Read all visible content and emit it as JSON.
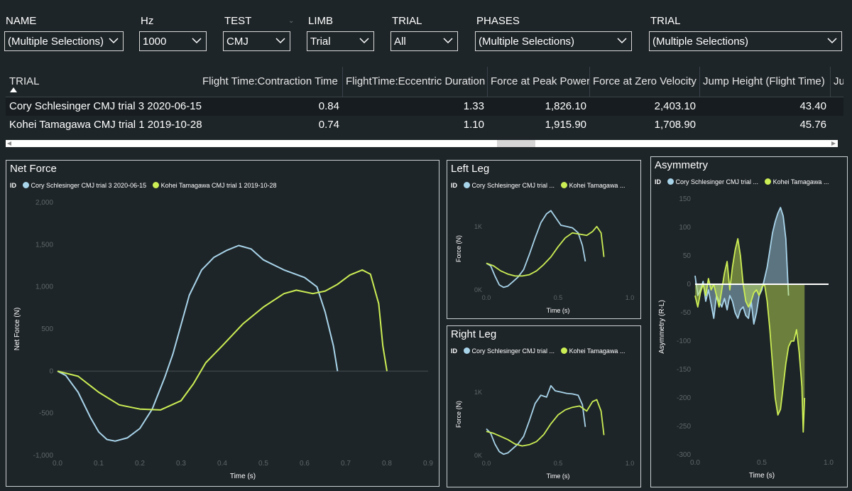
{
  "colors": {
    "blue": "#a8d4ea",
    "green": "#ccee55",
    "zero_line": "#ffffff",
    "tick": "#5e6669"
  },
  "slicers": [
    {
      "title": "NAME",
      "value": "(Multiple Selections)"
    },
    {
      "title": "Hz",
      "value": "1000"
    },
    {
      "title": "TEST",
      "value": "CMJ"
    },
    {
      "title": "LIMB",
      "value": "Trial"
    },
    {
      "title": "TRIAL",
      "value": "All"
    },
    {
      "title": "PHASES",
      "value": "(Multiple Selections)"
    },
    {
      "title": "TRIAL",
      "value": "(Multiple Selections)"
    }
  ],
  "table": {
    "columns": [
      "TRIAL",
      "Flight Time:Contraction Time",
      "FlightTime:Eccentric Duration",
      "Force at Peak Power",
      "Force at Zero Velocity",
      "Jump Height (Flight Time)",
      "Ju"
    ],
    "rows": [
      [
        "Cory Schlesinger CMJ trial 3 2020-06-15",
        "0.84",
        "1.33",
        "1,826.10",
        "2,403.10",
        "43.40"
      ],
      [
        "Kohei Tamagawa CMJ trial 1 2019-10-28",
        "0.74",
        "1.10",
        "1,915.90",
        "1,708.90",
        "45.76"
      ]
    ]
  },
  "legend": {
    "id_label": "ID",
    "full": [
      "Cory Schlesinger CMJ trial 3 2020-06-15",
      "Kohei Tamagawa CMJ trial 1 2019-10-28"
    ],
    "short": [
      "Cory Schlesinger CMJ trial ...",
      "Kohei Tamagawa ..."
    ]
  },
  "chart_data": [
    {
      "type": "line",
      "title": "Net Force",
      "xlabel": "Time (s)",
      "ylabel": "Net Force (N)",
      "xlim": [
        0,
        0.9
      ],
      "ylim": [
        -1000,
        2000
      ],
      "xticks": [
        0,
        0.1,
        0.2,
        0.3,
        0.4,
        0.5,
        0.6,
        0.7,
        0.8,
        0.9
      ],
      "xtick_labels": [
        "0.0",
        "0.1",
        "0.2",
        "0.3",
        "0.4",
        "0.5",
        "0.6",
        "0.7",
        "0.8",
        "0.9"
      ],
      "yticks": [
        -1000,
        -500,
        0,
        500,
        1000,
        1500,
        2000
      ],
      "ytick_labels": [
        "-1,000",
        "-500",
        "0",
        "500",
        "1,000",
        "1,500",
        "2,000"
      ],
      "series": [
        {
          "name": "Cory Schlesinger CMJ trial 3 2020-06-15",
          "color": "#a8d4ea",
          "x": [
            0,
            0.02,
            0.05,
            0.08,
            0.1,
            0.12,
            0.14,
            0.17,
            0.2,
            0.23,
            0.26,
            0.28,
            0.3,
            0.32,
            0.35,
            0.38,
            0.41,
            0.44,
            0.47,
            0.5,
            0.55,
            0.6,
            0.63,
            0.65,
            0.67,
            0.68
          ],
          "y": [
            0,
            -50,
            -250,
            -550,
            -720,
            -810,
            -830,
            -790,
            -680,
            -450,
            -80,
            200,
            550,
            900,
            1200,
            1350,
            1430,
            1490,
            1450,
            1320,
            1200,
            1110,
            1000,
            700,
            300,
            0
          ]
        },
        {
          "name": "Kohei Tamagawa CMJ trial 1 2019-10-28",
          "color": "#ccee55",
          "x": [
            0,
            0.05,
            0.1,
            0.15,
            0.2,
            0.25,
            0.3,
            0.33,
            0.36,
            0.4,
            0.45,
            0.5,
            0.55,
            0.58,
            0.62,
            0.65,
            0.68,
            0.71,
            0.74,
            0.76,
            0.78,
            0.79,
            0.8
          ],
          "y": [
            0,
            -60,
            -250,
            -400,
            -450,
            -460,
            -350,
            -150,
            100,
            300,
            560,
            760,
            920,
            960,
            920,
            950,
            1030,
            1140,
            1200,
            1150,
            800,
            300,
            0
          ]
        }
      ]
    },
    {
      "type": "line",
      "title": "Left Leg",
      "xlabel": "Time (s)",
      "ylabel": "Force (N)",
      "xlim": [
        0,
        1
      ],
      "ylim": [
        0,
        1300
      ],
      "xticks": [
        0,
        0.5,
        1.0
      ],
      "xtick_labels": [
        "0.0",
        "0.5",
        "1.0"
      ],
      "yticks": [
        0,
        1000
      ],
      "ytick_labels": [
        "0K",
        "1K"
      ],
      "series": [
        {
          "name": "Cory Schlesinger CMJ trial 3 2020-06-15",
          "color": "#a8d4ea",
          "x": [
            0,
            0.03,
            0.06,
            0.09,
            0.12,
            0.15,
            0.18,
            0.22,
            0.26,
            0.3,
            0.34,
            0.38,
            0.42,
            0.45,
            0.48,
            0.52,
            0.56,
            0.6,
            0.64,
            0.67,
            0.69
          ],
          "y": [
            420,
            380,
            220,
            80,
            40,
            60,
            120,
            200,
            320,
            560,
            820,
            1060,
            1200,
            1250,
            1150,
            1020,
            1000,
            980,
            900,
            700,
            450
          ]
        },
        {
          "name": "Kohei Tamagawa CMJ trial 1 2019-10-28",
          "color": "#ccee55",
          "x": [
            0,
            0.05,
            0.1,
            0.15,
            0.2,
            0.25,
            0.3,
            0.35,
            0.4,
            0.45,
            0.5,
            0.55,
            0.6,
            0.65,
            0.7,
            0.74,
            0.77,
            0.8,
            0.82
          ],
          "y": [
            420,
            380,
            300,
            250,
            220,
            220,
            240,
            300,
            400,
            520,
            680,
            820,
            900,
            880,
            860,
            920,
            1000,
            900,
            520
          ]
        }
      ]
    },
    {
      "type": "line",
      "title": "Right Leg",
      "xlabel": "Time (s)",
      "ylabel": "Force (N)",
      "xlim": [
        0,
        1
      ],
      "ylim": [
        0,
        1300
      ],
      "xticks": [
        0,
        0.5,
        1.0
      ],
      "xtick_labels": [
        "0.0",
        "0.5",
        "1.0"
      ],
      "yticks": [
        0,
        1000
      ],
      "ytick_labels": [
        "0K",
        "1K"
      ],
      "series": [
        {
          "name": "Cory Schlesinger CMJ trial 3 2020-06-15",
          "color": "#a8d4ea",
          "x": [
            0,
            0.03,
            0.06,
            0.09,
            0.12,
            0.15,
            0.18,
            0.22,
            0.26,
            0.3,
            0.34,
            0.38,
            0.42,
            0.45,
            0.48,
            0.52,
            0.56,
            0.6,
            0.64,
            0.67,
            0.69
          ],
          "y": [
            420,
            350,
            180,
            60,
            20,
            40,
            100,
            180,
            300,
            550,
            820,
            950,
            920,
            1100,
            1020,
            1000,
            980,
            970,
            950,
            800,
            450
          ]
        },
        {
          "name": "Kohei Tamagawa CMJ trial 1 2019-10-28",
          "color": "#ccee55",
          "x": [
            0,
            0.05,
            0.1,
            0.15,
            0.2,
            0.25,
            0.3,
            0.35,
            0.4,
            0.45,
            0.5,
            0.55,
            0.6,
            0.65,
            0.7,
            0.74,
            0.77,
            0.8,
            0.82
          ],
          "y": [
            380,
            350,
            300,
            250,
            180,
            150,
            170,
            220,
            330,
            500,
            640,
            720,
            760,
            780,
            700,
            850,
            880,
            700,
            320
          ]
        }
      ]
    },
    {
      "type": "area",
      "title": "Asymmetry",
      "xlabel": "Time (s)",
      "ylabel": "Asymmetry (R-L)",
      "xlim": [
        0,
        1
      ],
      "ylim": [
        -300,
        150
      ],
      "xticks": [
        0,
        0.5,
        1.0
      ],
      "xtick_labels": [
        "0.0",
        "0.5",
        "1.0"
      ],
      "yticks": [
        -300,
        -250,
        -200,
        -150,
        -100,
        -50,
        0,
        50,
        100,
        150
      ],
      "ytick_labels": [
        "-300",
        "-250",
        "-200",
        "-150",
        "-100",
        "-50",
        "0",
        "50",
        "100",
        "150"
      ],
      "series": [
        {
          "name": "Cory Schlesinger CMJ trial 3 2020-06-15",
          "color": "#a8d4ea",
          "x": [
            0,
            0.02,
            0.04,
            0.06,
            0.08,
            0.1,
            0.12,
            0.14,
            0.16,
            0.18,
            0.2,
            0.22,
            0.24,
            0.26,
            0.28,
            0.3,
            0.32,
            0.34,
            0.36,
            0.38,
            0.4,
            0.42,
            0.44,
            0.46,
            0.48,
            0.5,
            0.52,
            0.54,
            0.56,
            0.58,
            0.6,
            0.62,
            0.64,
            0.66,
            0.68,
            0.7
          ],
          "y": [
            15,
            -20,
            -10,
            5,
            -30,
            -10,
            -35,
            -60,
            -20,
            -30,
            -40,
            -25,
            -45,
            -20,
            -30,
            -50,
            -60,
            -45,
            -40,
            -55,
            -60,
            -30,
            -70,
            -50,
            -20,
            -10,
            10,
            30,
            60,
            90,
            110,
            125,
            135,
            120,
            80,
            -20
          ]
        },
        {
          "name": "Kohei Tamagawa CMJ trial 1 2019-10-28",
          "color": "#ccee55",
          "x": [
            0,
            0.02,
            0.04,
            0.06,
            0.08,
            0.1,
            0.12,
            0.14,
            0.16,
            0.18,
            0.2,
            0.22,
            0.24,
            0.26,
            0.28,
            0.3,
            0.32,
            0.34,
            0.36,
            0.38,
            0.4,
            0.42,
            0.44,
            0.46,
            0.48,
            0.5,
            0.52,
            0.54,
            0.56,
            0.58,
            0.6,
            0.62,
            0.64,
            0.66,
            0.68,
            0.7,
            0.72,
            0.74,
            0.76,
            0.78,
            0.8,
            0.81,
            0.82
          ],
          "y": [
            -20,
            -40,
            -15,
            0,
            -20,
            10,
            -10,
            0,
            -20,
            -40,
            -10,
            20,
            40,
            -10,
            30,
            60,
            80,
            50,
            0,
            -30,
            -40,
            -30,
            -15,
            -10,
            -20,
            -5,
            0,
            -30,
            -80,
            -140,
            -200,
            -230,
            -220,
            -180,
            -140,
            -110,
            -100,
            -100,
            -80,
            -120,
            -180,
            -260,
            -200
          ]
        }
      ]
    }
  ]
}
